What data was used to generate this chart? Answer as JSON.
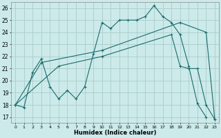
{
  "xlabel": "Humidex (Indice chaleur)",
  "bg_color": "#cceaea",
  "grid_color": "#aacccc",
  "line_color": "#1a6b6b",
  "xlim": [
    -0.5,
    23.5
  ],
  "ylim": [
    16.5,
    26.5
  ],
  "yticks": [
    17,
    18,
    19,
    20,
    21,
    22,
    23,
    24,
    25,
    26
  ],
  "xticks": [
    0,
    1,
    2,
    3,
    4,
    5,
    6,
    7,
    8,
    9,
    10,
    11,
    12,
    13,
    14,
    15,
    16,
    17,
    18,
    19,
    20,
    21,
    22,
    23
  ],
  "line1_x": [
    0,
    1,
    2,
    3,
    4,
    5,
    6,
    7,
    8,
    9,
    10,
    11,
    12,
    13,
    14,
    15,
    16,
    17,
    18,
    19,
    20,
    21,
    22
  ],
  "line1_y": [
    18,
    17.8,
    20.7,
    21.8,
    19.5,
    18.5,
    19.2,
    18.5,
    19.5,
    22.2,
    24.8,
    24.3,
    25.0,
    25.0,
    25.0,
    25.3,
    26.2,
    25.3,
    24.8,
    23.8,
    21.2,
    18.1,
    17.0
  ],
  "line2_x": [
    0,
    3,
    10,
    19,
    22,
    23
  ],
  "line2_y": [
    18,
    21.5,
    22.5,
    24.8,
    24.0,
    16.8
  ],
  "line3_x": [
    0,
    5,
    10,
    18,
    19,
    20,
    21,
    22,
    23
  ],
  "line3_y": [
    18,
    21.2,
    22.0,
    23.8,
    21.2,
    21.0,
    21.0,
    18.0,
    16.8
  ]
}
